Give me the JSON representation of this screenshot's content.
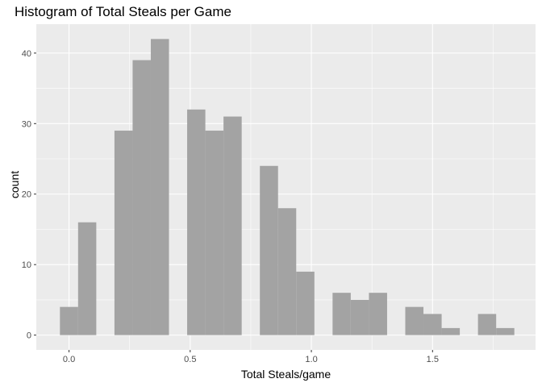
{
  "chart_data": {
    "type": "bar",
    "title": "Histogram of Total Steals per Game",
    "xlabel": "Total Steals/game",
    "ylabel": "count",
    "xlim": [
      -0.135,
      1.925
    ],
    "ylim": [
      -2.1,
      44.1
    ],
    "grid": true,
    "x_ticks": [
      {
        "value": 0.0,
        "label": "0.0"
      },
      {
        "value": 0.5,
        "label": "0.5"
      },
      {
        "value": 1.0,
        "label": "1.0"
      },
      {
        "value": 1.5,
        "label": "1.5"
      }
    ],
    "y_ticks": [
      {
        "value": 0,
        "label": "0"
      },
      {
        "value": 10,
        "label": "10"
      },
      {
        "value": 20,
        "label": "20"
      },
      {
        "value": 30,
        "label": "30"
      },
      {
        "value": 40,
        "label": "40"
      }
    ],
    "bins": [
      {
        "x0": -0.0375,
        "x1": 0.0375,
        "count": 4
      },
      {
        "x0": 0.0375,
        "x1": 0.1125,
        "count": 16
      },
      {
        "x0": 0.1875,
        "x1": 0.2625,
        "count": 29
      },
      {
        "x0": 0.2625,
        "x1": 0.3375,
        "count": 39
      },
      {
        "x0": 0.3375,
        "x1": 0.4125,
        "count": 42
      },
      {
        "x0": 0.4875,
        "x1": 0.5625,
        "count": 32
      },
      {
        "x0": 0.5625,
        "x1": 0.6375,
        "count": 29
      },
      {
        "x0": 0.6375,
        "x1": 0.7125,
        "count": 31
      },
      {
        "x0": 0.7875,
        "x1": 0.8625,
        "count": 24
      },
      {
        "x0": 0.8625,
        "x1": 0.9375,
        "count": 18
      },
      {
        "x0": 0.9375,
        "x1": 1.0125,
        "count": 9
      },
      {
        "x0": 1.0875,
        "x1": 1.1625,
        "count": 6
      },
      {
        "x0": 1.1625,
        "x1": 1.2375,
        "count": 5
      },
      {
        "x0": 1.2375,
        "x1": 1.3125,
        "count": 6
      },
      {
        "x0": 1.3875,
        "x1": 1.4625,
        "count": 4
      },
      {
        "x0": 1.4625,
        "x1": 1.5375,
        "count": 3
      },
      {
        "x0": 1.5375,
        "x1": 1.6125,
        "count": 1
      },
      {
        "x0": 1.6875,
        "x1": 1.7625,
        "count": 3
      },
      {
        "x0": 1.7625,
        "x1": 1.8375,
        "count": 1
      }
    ],
    "colors": {
      "panel": "#ebebeb",
      "grid_major": "#ffffff",
      "bar_fill": "#a3a3a3",
      "tick": "#333333"
    }
  }
}
